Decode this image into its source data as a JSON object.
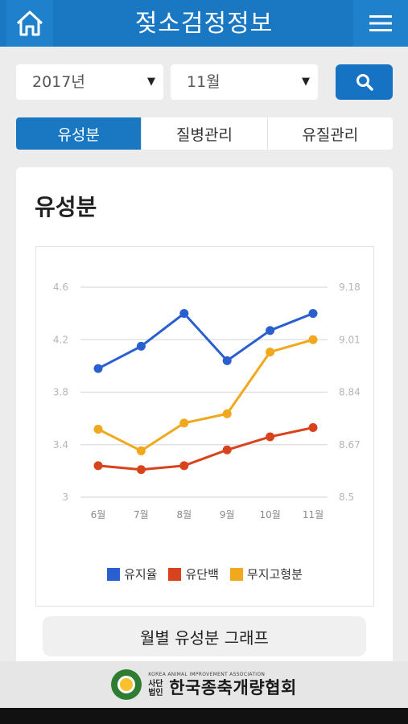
{
  "header": {
    "title": "젖소검정정보",
    "home_icon": "home-icon",
    "menu_icon": "hamburger-menu-icon"
  },
  "filters": {
    "year": "2017년",
    "month": "11월",
    "search_icon": "search-icon"
  },
  "tabs": [
    {
      "label": "유성분"
    },
    {
      "label": "질병관리"
    },
    {
      "label": "유질관리"
    }
  ],
  "card": {
    "title": "유성분",
    "graph_button": "월별 유성분 그래프"
  },
  "chart_data": {
    "type": "line",
    "categories": [
      "6월",
      "7월",
      "8월",
      "9월",
      "10월",
      "11월"
    ],
    "y_left": {
      "ticks": [
        "4.6",
        "4.2",
        "3.8",
        "3.4",
        "3"
      ],
      "range": [
        3,
        4.6
      ]
    },
    "y_right": {
      "ticks": [
        "9.18",
        "9.01",
        "8.84",
        "8.67",
        "8.5"
      ],
      "range": [
        8.5,
        9.18
      ]
    },
    "grid": true,
    "legend_position": "bottom",
    "series": [
      {
        "name": "유지율",
        "axis": "left",
        "color": "#2a5fd0",
        "values": [
          3.98,
          4.15,
          4.4,
          4.04,
          4.27,
          4.4
        ]
      },
      {
        "name": "유단백",
        "axis": "left",
        "color": "#d8431e",
        "values": [
          3.24,
          3.21,
          3.24,
          3.36,
          3.46,
          3.53
        ]
      },
      {
        "name": "무지고형분",
        "axis": "right",
        "color": "#f2a81c",
        "values": [
          8.72,
          8.65,
          8.74,
          8.77,
          8.97,
          9.01
        ]
      }
    ]
  },
  "footer": {
    "eng": "KOREA ANIMAL IMPROVEMENT ASSOCIATION",
    "prefix_top": "사단",
    "prefix_bottom": "법인",
    "org": "한국종축개량협회",
    "logo_icon": "association-logo-icon"
  }
}
